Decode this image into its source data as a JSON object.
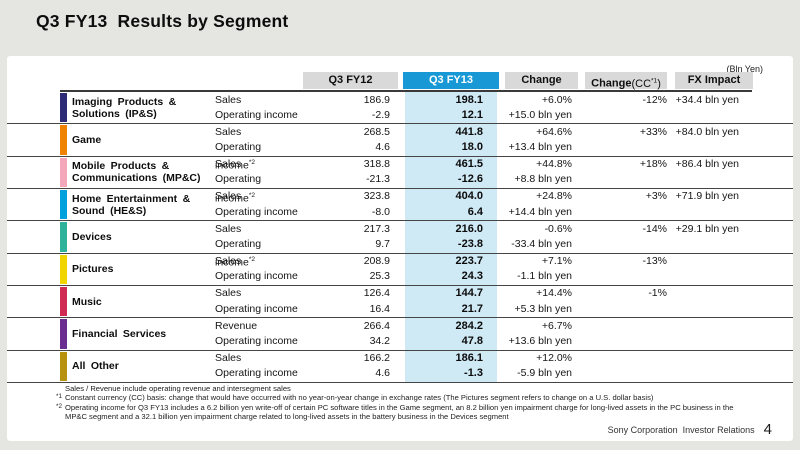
{
  "slide": {
    "title": "Q3 FY13  Results by Segment",
    "unit_label": "(Bln Yen)"
  },
  "table": {
    "header": {
      "fy12": "Q3 FY12",
      "fy13": "Q3 FY13",
      "change": "Change",
      "cc_main": "Change",
      "cc_open": "(CC",
      "cc_sup": "*1",
      "cc_close": ")",
      "fx": "FX Impact"
    },
    "highlight_header_color": "#1899d6",
    "highlight_column_color": "#cfe9f5",
    "segments": [
      {
        "id": "imaging-products-solutions",
        "name": "Imaging Products &\nSolutions  (IP&S)",
        "color": "#2d2b76",
        "rows": [
          {
            "label": "Sales",
            "sup": "",
            "fy12": "186.9",
            "fy13": "198.1",
            "change": "+6.0%",
            "cc": "-12%",
            "fx": "+34.4 bln yen"
          },
          {
            "label": "Operating income",
            "sup": "",
            "fy12": "-2.9",
            "fy13": "12.1",
            "change": "+15.0 bln yen",
            "cc": "",
            "fx": ""
          }
        ]
      },
      {
        "id": "game",
        "name": "Game",
        "color": "#ef8200",
        "rows": [
          {
            "label": "Sales",
            "sup": "",
            "fy12": "268.5",
            "fy13": "441.8",
            "change": "+64.6%",
            "cc": "+33%",
            "fx": "+84.0 bln yen"
          },
          {
            "label": "Operating income",
            "sup": "*2",
            "fy12": "4.6",
            "fy13": "18.0",
            "change": "+13.4 bln yen",
            "cc": "",
            "fx": ""
          }
        ]
      },
      {
        "id": "mobile-products-communications",
        "name": "Mobile Products &\nCommunications  (MP&C)",
        "color": "#f4a6ba",
        "rows": [
          {
            "label": "Sales",
            "sup": "",
            "fy12": "318.8",
            "fy13": "461.5",
            "change": "+44.8%",
            "cc": "+18%",
            "fx": "+86.4 bln yen"
          },
          {
            "label": "Operating income",
            "sup": "*2",
            "fy12": "-21.3",
            "fy13": "-12.6",
            "change": "+8.8 bln yen",
            "cc": "",
            "fx": ""
          }
        ]
      },
      {
        "id": "home-entertainment-sound",
        "name": "Home Entertainment &\nSound  (HE&S)",
        "color": "#00a1dc",
        "rows": [
          {
            "label": "Sales",
            "sup": "",
            "fy12": "323.8",
            "fy13": "404.0",
            "change": "+24.8%",
            "cc": "+3%",
            "fx": "+71.9 bln yen"
          },
          {
            "label": "Operating income",
            "sup": "",
            "fy12": "-8.0",
            "fy13": "6.4",
            "change": "+14.4 bln yen",
            "cc": "",
            "fx": ""
          }
        ]
      },
      {
        "id": "devices",
        "name": "Devices",
        "color": "#2eb39a",
        "rows": [
          {
            "label": "Sales",
            "sup": "",
            "fy12": "217.3",
            "fy13": "216.0",
            "change": "-0.6%",
            "cc": "-14%",
            "fx": "+29.1 bln yen"
          },
          {
            "label": "Operating income",
            "sup": "*2",
            "fy12": "9.7",
            "fy13": "-23.8",
            "change": "-33.4 bln yen",
            "cc": "",
            "fx": ""
          }
        ]
      },
      {
        "id": "pictures",
        "name": "Pictures",
        "color": "#f0d500",
        "rows": [
          {
            "label": "Sales",
            "sup": "",
            "fy12": "208.9",
            "fy13": "223.7",
            "change": "+7.1%",
            "cc": "-13%",
            "fx": ""
          },
          {
            "label": "Operating income",
            "sup": "",
            "fy12": "25.3",
            "fy13": "24.3",
            "change": "-1.1 bln yen",
            "cc": "",
            "fx": ""
          }
        ]
      },
      {
        "id": "music",
        "name": "Music",
        "color": "#ce2a54",
        "rows": [
          {
            "label": "Sales",
            "sup": "",
            "fy12": "126.4",
            "fy13": "144.7",
            "change": "+14.4%",
            "cc": "-1%",
            "fx": ""
          },
          {
            "label": "Operating income",
            "sup": "",
            "fy12": "16.4",
            "fy13": "21.7",
            "change": "+5.3 bln yen",
            "cc": "",
            "fx": ""
          }
        ]
      },
      {
        "id": "financial-services",
        "name": "Financial  Services",
        "color": "#6a2d90",
        "rows": [
          {
            "label": "Revenue",
            "sup": "",
            "fy12": "266.4",
            "fy13": "284.2",
            "change": "+6.7%",
            "cc": "",
            "fx": ""
          },
          {
            "label": "Operating income",
            "sup": "",
            "fy12": "34.2",
            "fy13": "47.8",
            "change": "+13.6 bln yen",
            "cc": "",
            "fx": ""
          }
        ]
      },
      {
        "id": "all-other",
        "name": "All  Other",
        "color": "#b6920e",
        "rows": [
          {
            "label": "Sales",
            "sup": "",
            "fy12": "166.2",
            "fy13": "186.1",
            "change": "+12.0%",
            "cc": "",
            "fx": ""
          },
          {
            "label": "Operating income",
            "sup": "",
            "fy12": "4.6",
            "fy13": "-1.3",
            "change": "-5.9 bln yen",
            "cc": "",
            "fx": ""
          }
        ]
      }
    ]
  },
  "footnotes": [
    {
      "marker": "",
      "text": "Sales / Revenue include operating revenue and intersegment sales"
    },
    {
      "marker": "*1",
      "text": "Constant currency (CC) basis: change that would have occurred with no year-on-year change in exchange rates (The Pictures segment refers to change on a U.S. dollar basis)"
    },
    {
      "marker": "*2",
      "text": "Operating income for Q3 FY13 includes a 6.2 billion yen write-off of certain PC software titles in the Game segment, an 8.2 billion yen impairment charge for long-lived assets in the PC business in the MP&C segment and a 32.1 billion yen impairment charge related to long-lived assets in the battery business in the Devices segment"
    }
  ],
  "footer": {
    "credit": "Sony Corporation  Investor Relations",
    "page": "4"
  }
}
